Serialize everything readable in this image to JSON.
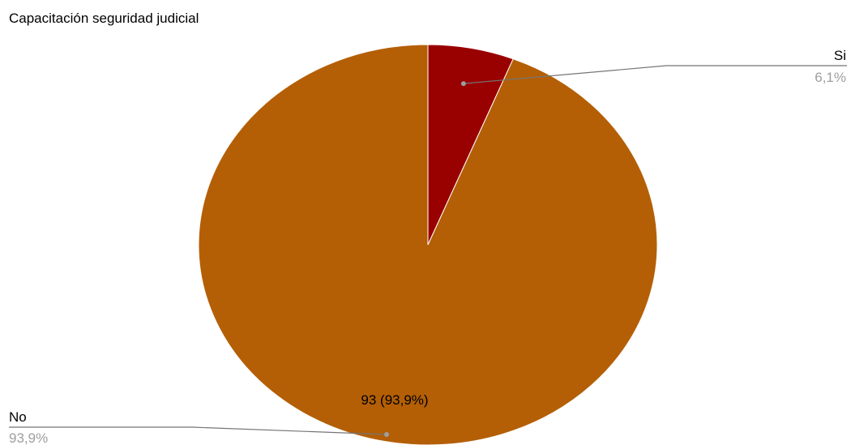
{
  "chart_data": {
    "type": "pie",
    "title": "Capacitación seguridad judicial",
    "slices": [
      {
        "name": "Si",
        "value": 6,
        "percent_label": "6,1%",
        "color": "#990000"
      },
      {
        "name": "No",
        "value": 93,
        "percent_label": "93,9%",
        "color": "#b45f06",
        "data_label": "93 (93,9%)"
      }
    ],
    "legend": "labeled-leader-lines"
  }
}
